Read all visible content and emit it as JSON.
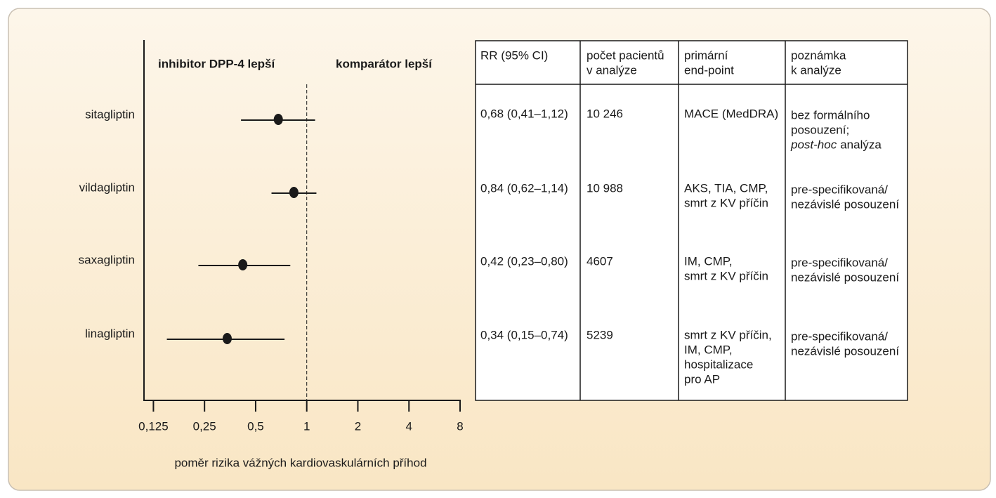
{
  "chart_data": {
    "type": "forest",
    "categories": [
      "sitagliptin",
      "vildagliptin",
      "saxagliptin",
      "linagliptin"
    ],
    "values": [
      0.68,
      0.84,
      0.42,
      0.34
    ],
    "lower": [
      0.41,
      0.62,
      0.23,
      0.15
    ],
    "upper": [
      1.12,
      1.14,
      0.8,
      0.74
    ],
    "value_labels": [
      "0,68 (0,41–1,12)",
      "0,84 (0,62–1,14)",
      "0,42 (0,23–0,80)",
      "0,34 (0,15–0,74)"
    ],
    "color": "#1a1a1a",
    "log_scale": true,
    "reference_line": 1,
    "xlim": [
      0.11,
      8
    ],
    "xticks": [
      {
        "value": 0.125,
        "label": "0,125"
      },
      {
        "value": 0.25,
        "label": "0,25"
      },
      {
        "value": 0.5,
        "label": "0,5"
      },
      1,
      2,
      4,
      8
    ],
    "xlabel": "poměr rizika vážných kardiovaskulárních příhod",
    "annotations": [
      "inhibitor DPP-4 lepší",
      "komparátor lepší"
    ]
  },
  "table": {
    "headers": [
      [
        "RR (95% CI)"
      ],
      [
        "počet pacientů",
        "v analýze"
      ],
      [
        "primární",
        "end-point"
      ],
      [
        "poznámka",
        "k analýze"
      ]
    ],
    "rows": [
      {
        "patients": "10 246",
        "endpoint": [
          "MACE (MedDRA)"
        ],
        "note": [
          "bez formálního",
          "posouzení;"
        ],
        "note_italic": "post-hoc",
        "note_tail": "analýza"
      },
      {
        "patients": "10 988",
        "endpoint": [
          "AKS, TIA, CMP,",
          "smrt z KV příčin"
        ],
        "note": [
          "pre-specifikovaná/",
          "nezávislé posouzení"
        ]
      },
      {
        "patients": "4607",
        "endpoint": [
          "IM, CMP,",
          "smrt z KV příčin"
        ],
        "note": [
          "pre-specifikovaná/",
          "nezávislé posouzení"
        ]
      },
      {
        "patients": "5239",
        "endpoint": [
          "smrt z KV příčin,",
          "IM, CMP,",
          "hospitalizace",
          "pro AP"
        ],
        "note": [
          "pre-specifikovaná/",
          "nezávislé posouzení"
        ]
      }
    ]
  }
}
